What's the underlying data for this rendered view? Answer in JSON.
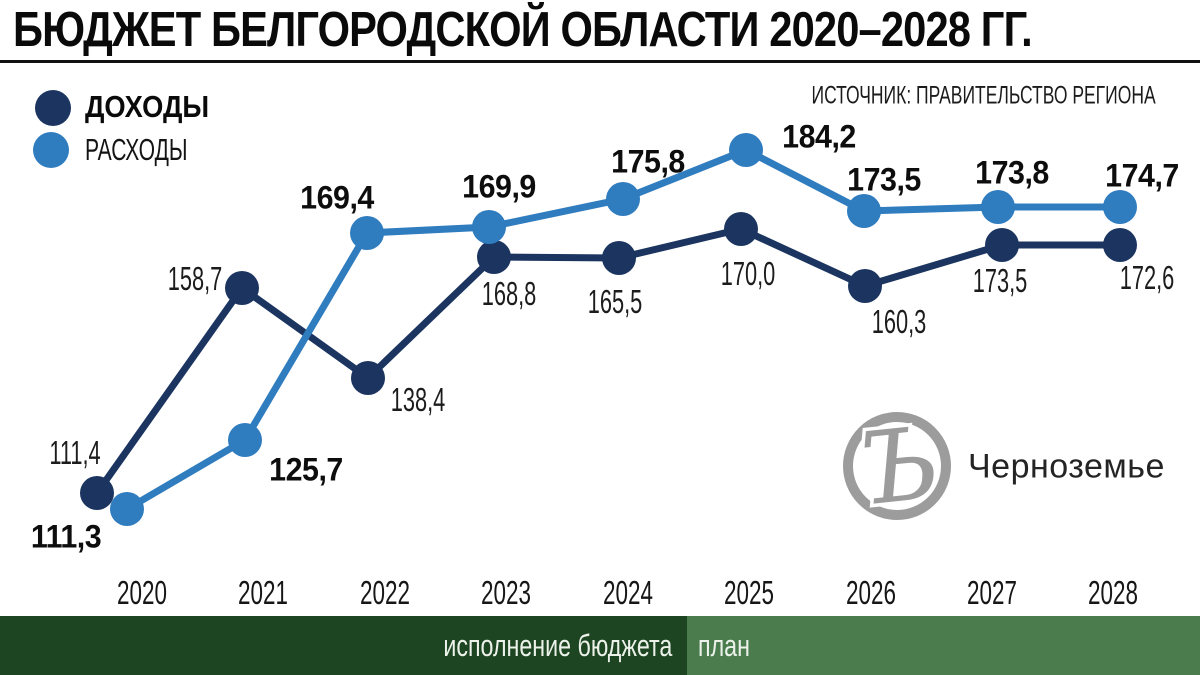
{
  "header": {
    "title": "БЮДЖЕТ БЕЛГОРОДСКОЙ ОБЛАСТИ 2020–2028 ГГ."
  },
  "source": "ИСТОЧНИК: ПРАВИТЕЛЬСТВО РЕГИОНА",
  "legend": [
    {
      "label": "ДОХОДЫ",
      "color": "#1b3560"
    },
    {
      "label": "РАСХОДЫ",
      "color": "#2f7cbf"
    }
  ],
  "chart_data": {
    "type": "line",
    "categories": [
      "2020",
      "2021",
      "2022",
      "2023",
      "2024",
      "2025",
      "2026",
      "2027",
      "2028"
    ],
    "series": [
      {
        "key": "revenues",
        "name": "ДОХОДЫ",
        "color": "#1b3560",
        "label_style": "condensed",
        "values": [
          111.4,
          158.7,
          138.4,
          168.8,
          165.5,
          170.0,
          160.3,
          173.5,
          172.6
        ]
      },
      {
        "key": "expenditures",
        "name": "РАСХОДЫ",
        "color": "#2f7cbf",
        "label_style": "bold",
        "values": [
          111.3,
          125.7,
          169.4,
          169.9,
          175.8,
          184.2,
          173.5,
          173.8,
          174.7
        ]
      }
    ],
    "title": "БЮДЖЕТ БЕЛГОРОДСКОЙ ОБЛАСТИ 2020–2028 ГГ.",
    "xlabel": "",
    "ylabel": "",
    "grid": false,
    "legend_position": "top-left",
    "value_labels_shown": true,
    "decimal_separator": ","
  },
  "footer": {
    "left": "исполнение бюджета",
    "right": "план",
    "left_color": "#1e4522",
    "right_color": "#4b7c4e"
  },
  "logo": {
    "glyph": "Ъ",
    "text": "Черноземье",
    "color": "#9c9c9c"
  }
}
